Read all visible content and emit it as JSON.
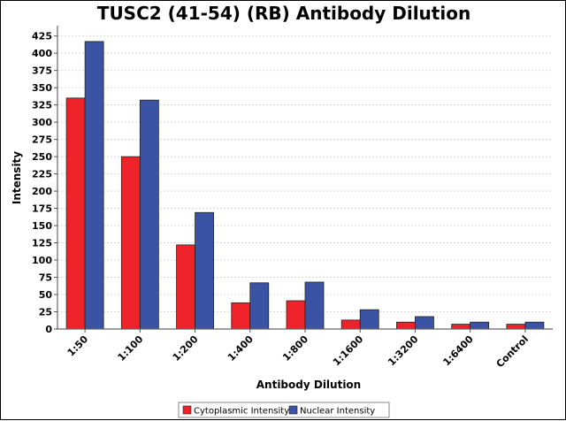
{
  "chart_data": {
    "type": "bar",
    "title": "TUSC2 (41-54) (RB) Antibody Dilution",
    "xlabel": "Antibody Dilution",
    "ylabel": "Intensity",
    "ylim": [
      0,
      440
    ],
    "yticks": [
      0,
      25,
      50,
      75,
      100,
      125,
      150,
      175,
      200,
      225,
      250,
      275,
      300,
      325,
      350,
      375,
      400,
      425
    ],
    "grid": true,
    "legend_position": "bottom",
    "categories": [
      "1:50",
      "1:100",
      "1:200",
      "1:400",
      "1:800",
      "1:1600",
      "1:3200",
      "1:6400",
      "Control"
    ],
    "series": [
      {
        "name": "Cytoplasmic Intensity",
        "color": "#ee2229",
        "values": [
          335,
          250,
          122,
          38,
          41,
          13,
          10,
          7,
          7
        ]
      },
      {
        "name": "Nuclear Intensity",
        "color": "#3a53a4",
        "values": [
          417,
          332,
          169,
          67,
          68,
          28,
          18,
          10,
          10
        ]
      }
    ]
  }
}
